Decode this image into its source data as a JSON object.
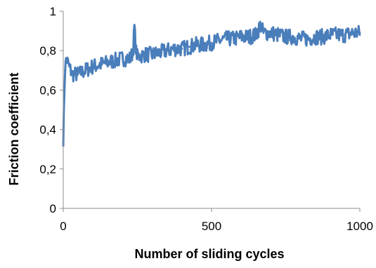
{
  "chart_data": {
    "type": "line",
    "title": "",
    "xlabel": "Number of sliding cycles",
    "ylabel": "Friction coefficient",
    "xlim": [
      0,
      1000
    ],
    "ylim": [
      0,
      1
    ],
    "x_ticks": [
      0,
      500,
      1000
    ],
    "x_tick_labels": [
      "0",
      "500",
      "1000"
    ],
    "y_ticks": [
      0,
      0.2,
      0.4,
      0.6,
      0.8,
      1
    ],
    "y_tick_labels": [
      "0",
      "0,2",
      "0,4",
      "0,6",
      "0,8",
      "1"
    ],
    "grid": false,
    "legend": "none",
    "series": [
      {
        "color": "#4a7ebb",
        "x": [
          0,
          3,
          6,
          10,
          20,
          30,
          50,
          75,
          100,
          125,
          150,
          175,
          200,
          225,
          235,
          240,
          245,
          250,
          275,
          300,
          325,
          350,
          375,
          400,
          425,
          450,
          475,
          500,
          525,
          550,
          575,
          600,
          625,
          650,
          665,
          675,
          700,
          725,
          750,
          775,
          800,
          825,
          850,
          875,
          900,
          925,
          950,
          975,
          1000
        ],
        "y": [
          0.33,
          0.55,
          0.7,
          0.76,
          0.72,
          0.68,
          0.68,
          0.7,
          0.72,
          0.73,
          0.74,
          0.75,
          0.76,
          0.76,
          0.79,
          0.92,
          0.8,
          0.77,
          0.78,
          0.78,
          0.79,
          0.8,
          0.81,
          0.81,
          0.82,
          0.83,
          0.83,
          0.84,
          0.85,
          0.86,
          0.86,
          0.87,
          0.87,
          0.88,
          0.93,
          0.89,
          0.89,
          0.88,
          0.87,
          0.87,
          0.86,
          0.86,
          0.87,
          0.87,
          0.88,
          0.88,
          0.88,
          0.89,
          0.89
        ],
        "band_halfwidth": 0.04
      }
    ]
  }
}
